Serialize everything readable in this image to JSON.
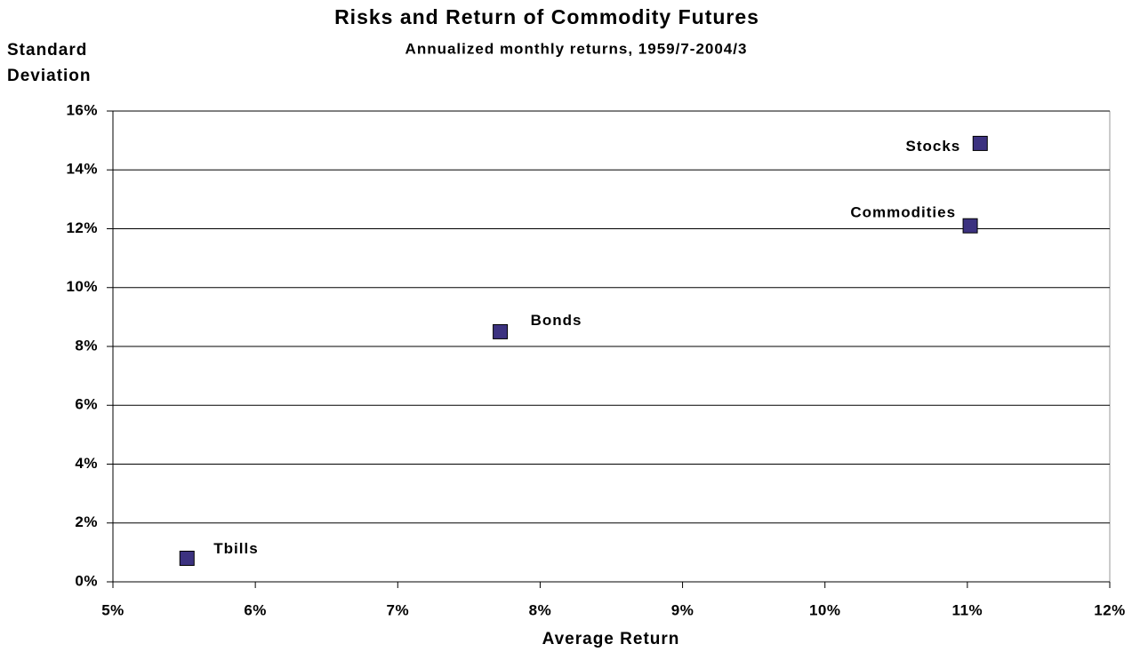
{
  "chart_data": {
    "type": "scatter",
    "title": "Risks and Return of Commodity Futures",
    "subtitle": "Annualized monthly returns, 1959/7-2004/3",
    "xlabel": "Average Return",
    "ylabel": [
      "Standard",
      "Deviation"
    ],
    "x": [
      5.52,
      7.72,
      11.02,
      11.09
    ],
    "values": [
      0.8,
      8.5,
      12.1,
      14.9
    ],
    "point_labels": [
      "Tbills",
      "Bonds",
      "Commodities",
      "Stocks"
    ],
    "color": "#3c3280",
    "xlim": [
      5,
      12
    ],
    "xticks": [
      {
        "value": 5,
        "label": "5%"
      },
      {
        "value": 6,
        "label": "6%"
      },
      {
        "value": 7,
        "label": "7%"
      },
      {
        "value": 8,
        "label": "8%"
      },
      {
        "value": 9,
        "label": "9%"
      },
      {
        "value": 10,
        "label": "10%"
      },
      {
        "value": 11,
        "label": "11%"
      },
      {
        "value": 12,
        "label": "12%"
      }
    ],
    "ylim": [
      0,
      16
    ],
    "yticks": [
      {
        "value": 0,
        "label": "0%"
      },
      {
        "value": 2,
        "label": "2%"
      },
      {
        "value": 4,
        "label": "4%"
      },
      {
        "value": 6,
        "label": "6%"
      },
      {
        "value": 8,
        "label": "8%"
      },
      {
        "value": 10,
        "label": "10%"
      },
      {
        "value": 12,
        "label": "12%"
      },
      {
        "value": 14,
        "label": "14%"
      },
      {
        "value": 16,
        "label": "16%"
      }
    ],
    "grid": true
  }
}
